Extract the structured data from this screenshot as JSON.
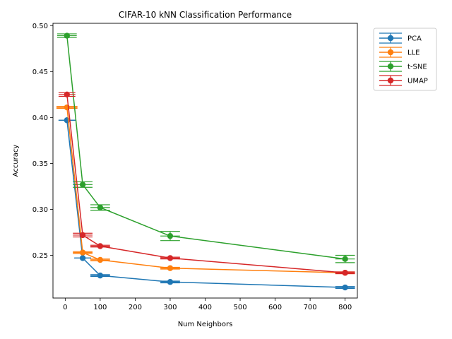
{
  "chart_data": {
    "type": "line",
    "title": "CIFAR-10 kNN Classification Performance",
    "xlabel": "Num Neighbors",
    "ylabel": "Accuracy",
    "xlim": [
      -35,
      835
    ],
    "ylim": [
      0.2035,
      0.5025
    ],
    "xticks": [
      0,
      100,
      200,
      300,
      400,
      500,
      600,
      700,
      800
    ],
    "yticks": [
      0.25,
      0.3,
      0.35,
      0.4,
      0.45,
      0.5
    ],
    "ytick_labels": [
      "0.25",
      "0.30",
      "0.35",
      "0.40",
      "0.45",
      "0.50"
    ],
    "legend_position": "outside-top-right",
    "x": [
      5,
      50,
      100,
      300,
      800
    ],
    "series": [
      {
        "name": "PCA",
        "color": "#1f77b4",
        "values": [
          0.397,
          0.247,
          0.228,
          0.221,
          0.215
        ],
        "xerr": [
          24,
          24,
          28,
          28,
          28
        ],
        "yerr": [
          0,
          0,
          0.001,
          0.001,
          0.001
        ]
      },
      {
        "name": "LLE",
        "color": "#ff7f0e",
        "values": [
          0.411,
          0.253,
          0.245,
          0.236,
          0.231
        ],
        "xerr": [
          30,
          28,
          28,
          28,
          28
        ],
        "yerr": [
          0.001,
          0.001,
          0.001,
          0.001,
          0.001
        ]
      },
      {
        "name": "t-SNE",
        "color": "#2ca02c",
        "values": [
          0.489,
          0.327,
          0.302,
          0.271,
          0.246
        ],
        "xerr": [
          28,
          28,
          28,
          28,
          28
        ],
        "yerr": [
          0.002,
          0.003,
          0.003,
          0.005,
          0.004
        ]
      },
      {
        "name": "UMAP",
        "color": "#d62728",
        "values": [
          0.425,
          0.272,
          0.26,
          0.247,
          0.231
        ],
        "xerr": [
          24,
          28,
          28,
          28,
          28
        ],
        "yerr": [
          0.002,
          0.002,
          0.001,
          0.001,
          0.001
        ]
      }
    ]
  }
}
